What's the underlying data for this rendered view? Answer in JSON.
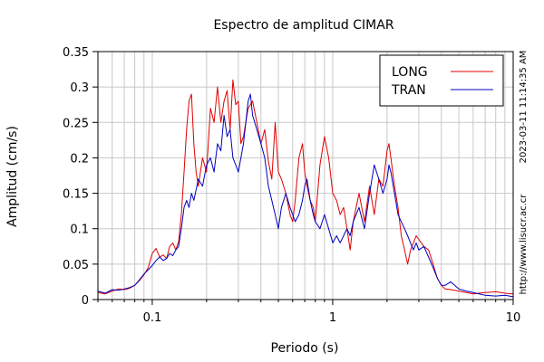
{
  "chart_data": {
    "type": "line",
    "title": "Espectro de amplitud CIMAR",
    "xlabel": "Periodo (s)",
    "ylabel": "Amplitud (cm/s)",
    "x_scale": "log",
    "xlim": [
      0.05,
      10
    ],
    "ylim": [
      0,
      0.35
    ],
    "x_ticks": [
      {
        "value": 0.1,
        "label": "0.1"
      },
      {
        "value": 1,
        "label": "1"
      },
      {
        "value": 10,
        "label": "10"
      }
    ],
    "y_ticks": [
      {
        "value": 0,
        "label": "0"
      },
      {
        "value": 0.05,
        "label": "0.05"
      },
      {
        "value": 0.1,
        "label": "0.1"
      },
      {
        "value": 0.15,
        "label": "0.15"
      },
      {
        "value": 0.2,
        "label": "0.2"
      },
      {
        "value": 0.25,
        "label": "0.25"
      },
      {
        "value": 0.3,
        "label": "0.3"
      },
      {
        "value": 0.35,
        "label": "0.35"
      }
    ],
    "grid": true,
    "legend_position": "top-right",
    "side_labels": {
      "timestamp": "2023-03-11 11:14:35 AM",
      "website": "http://www.lisucr.ac.cr"
    },
    "series": [
      {
        "name": "LONG",
        "color": "#e00000",
        "points": [
          [
            0.05,
            0.01
          ],
          [
            0.055,
            0.008
          ],
          [
            0.06,
            0.012
          ],
          [
            0.065,
            0.015
          ],
          [
            0.07,
            0.014
          ],
          [
            0.075,
            0.016
          ],
          [
            0.08,
            0.02
          ],
          [
            0.085,
            0.027
          ],
          [
            0.09,
            0.035
          ],
          [
            0.095,
            0.045
          ],
          [
            0.1,
            0.065
          ],
          [
            0.105,
            0.072
          ],
          [
            0.11,
            0.06
          ],
          [
            0.115,
            0.063
          ],
          [
            0.12,
            0.058
          ],
          [
            0.125,
            0.075
          ],
          [
            0.13,
            0.08
          ],
          [
            0.135,
            0.07
          ],
          [
            0.14,
            0.082
          ],
          [
            0.145,
            0.12
          ],
          [
            0.15,
            0.18
          ],
          [
            0.155,
            0.24
          ],
          [
            0.16,
            0.28
          ],
          [
            0.165,
            0.29
          ],
          [
            0.17,
            0.22
          ],
          [
            0.175,
            0.18
          ],
          [
            0.18,
            0.16
          ],
          [
            0.19,
            0.2
          ],
          [
            0.2,
            0.18
          ],
          [
            0.21,
            0.27
          ],
          [
            0.22,
            0.25
          ],
          [
            0.23,
            0.3
          ],
          [
            0.24,
            0.25
          ],
          [
            0.25,
            0.28
          ],
          [
            0.26,
            0.295
          ],
          [
            0.27,
            0.24
          ],
          [
            0.28,
            0.31
          ],
          [
            0.29,
            0.275
          ],
          [
            0.3,
            0.28
          ],
          [
            0.31,
            0.22
          ],
          [
            0.32,
            0.23
          ],
          [
            0.34,
            0.27
          ],
          [
            0.36,
            0.28
          ],
          [
            0.38,
            0.25
          ],
          [
            0.4,
            0.22
          ],
          [
            0.42,
            0.24
          ],
          [
            0.44,
            0.195
          ],
          [
            0.46,
            0.17
          ],
          [
            0.48,
            0.25
          ],
          [
            0.5,
            0.18
          ],
          [
            0.52,
            0.17
          ],
          [
            0.55,
            0.15
          ],
          [
            0.58,
            0.12
          ],
          [
            0.6,
            0.11
          ],
          [
            0.62,
            0.14
          ],
          [
            0.65,
            0.2
          ],
          [
            0.68,
            0.22
          ],
          [
            0.7,
            0.18
          ],
          [
            0.72,
            0.16
          ],
          [
            0.75,
            0.14
          ],
          [
            0.78,
            0.13
          ],
          [
            0.8,
            0.11
          ],
          [
            0.85,
            0.19
          ],
          [
            0.9,
            0.23
          ],
          [
            0.95,
            0.2
          ],
          [
            1.0,
            0.15
          ],
          [
            1.05,
            0.14
          ],
          [
            1.1,
            0.12
          ],
          [
            1.15,
            0.13
          ],
          [
            1.2,
            0.1
          ],
          [
            1.25,
            0.07
          ],
          [
            1.3,
            0.11
          ],
          [
            1.4,
            0.15
          ],
          [
            1.5,
            0.11
          ],
          [
            1.6,
            0.16
          ],
          [
            1.7,
            0.12
          ],
          [
            1.8,
            0.17
          ],
          [
            1.9,
            0.16
          ],
          [
            2.0,
            0.21
          ],
          [
            2.05,
            0.22
          ],
          [
            2.1,
            0.2
          ],
          [
            2.2,
            0.16
          ],
          [
            2.3,
            0.13
          ],
          [
            2.4,
            0.09
          ],
          [
            2.5,
            0.07
          ],
          [
            2.6,
            0.05
          ],
          [
            2.7,
            0.07
          ],
          [
            2.8,
            0.08
          ],
          [
            2.9,
            0.09
          ],
          [
            3.0,
            0.085
          ],
          [
            3.2,
            0.075
          ],
          [
            3.4,
            0.07
          ],
          [
            3.6,
            0.05
          ],
          [
            3.8,
            0.03
          ],
          [
            4.0,
            0.02
          ],
          [
            4.2,
            0.015
          ],
          [
            4.5,
            0.014
          ],
          [
            5.0,
            0.012
          ],
          [
            5.5,
            0.01
          ],
          [
            6.0,
            0.008
          ],
          [
            7.0,
            0.01
          ],
          [
            8.0,
            0.011
          ],
          [
            9.0,
            0.009
          ],
          [
            10.0,
            0.008
          ]
        ]
      },
      {
        "name": "TRAN",
        "color": "#0000c0",
        "points": [
          [
            0.05,
            0.012
          ],
          [
            0.055,
            0.009
          ],
          [
            0.06,
            0.014
          ],
          [
            0.065,
            0.013
          ],
          [
            0.07,
            0.015
          ],
          [
            0.075,
            0.017
          ],
          [
            0.08,
            0.02
          ],
          [
            0.085,
            0.028
          ],
          [
            0.09,
            0.036
          ],
          [
            0.095,
            0.042
          ],
          [
            0.1,
            0.048
          ],
          [
            0.105,
            0.055
          ],
          [
            0.11,
            0.06
          ],
          [
            0.115,
            0.055
          ],
          [
            0.12,
            0.058
          ],
          [
            0.125,
            0.065
          ],
          [
            0.13,
            0.062
          ],
          [
            0.135,
            0.07
          ],
          [
            0.14,
            0.075
          ],
          [
            0.145,
            0.1
          ],
          [
            0.15,
            0.13
          ],
          [
            0.155,
            0.14
          ],
          [
            0.16,
            0.13
          ],
          [
            0.165,
            0.15
          ],
          [
            0.17,
            0.14
          ],
          [
            0.175,
            0.155
          ],
          [
            0.18,
            0.17
          ],
          [
            0.19,
            0.16
          ],
          [
            0.2,
            0.19
          ],
          [
            0.21,
            0.2
          ],
          [
            0.22,
            0.18
          ],
          [
            0.23,
            0.22
          ],
          [
            0.24,
            0.21
          ],
          [
            0.25,
            0.26
          ],
          [
            0.26,
            0.23
          ],
          [
            0.27,
            0.24
          ],
          [
            0.28,
            0.2
          ],
          [
            0.29,
            0.19
          ],
          [
            0.3,
            0.18
          ],
          [
            0.31,
            0.2
          ],
          [
            0.32,
            0.22
          ],
          [
            0.33,
            0.25
          ],
          [
            0.34,
            0.28
          ],
          [
            0.35,
            0.29
          ],
          [
            0.36,
            0.26
          ],
          [
            0.38,
            0.24
          ],
          [
            0.4,
            0.22
          ],
          [
            0.42,
            0.2
          ],
          [
            0.44,
            0.16
          ],
          [
            0.46,
            0.14
          ],
          [
            0.48,
            0.12
          ],
          [
            0.5,
            0.1
          ],
          [
            0.52,
            0.13
          ],
          [
            0.55,
            0.15
          ],
          [
            0.58,
            0.13
          ],
          [
            0.6,
            0.12
          ],
          [
            0.62,
            0.11
          ],
          [
            0.65,
            0.12
          ],
          [
            0.68,
            0.14
          ],
          [
            0.7,
            0.16
          ],
          [
            0.72,
            0.17
          ],
          [
            0.75,
            0.14
          ],
          [
            0.78,
            0.12
          ],
          [
            0.8,
            0.11
          ],
          [
            0.85,
            0.1
          ],
          [
            0.9,
            0.12
          ],
          [
            0.95,
            0.1
          ],
          [
            1.0,
            0.08
          ],
          [
            1.05,
            0.09
          ],
          [
            1.1,
            0.08
          ],
          [
            1.15,
            0.09
          ],
          [
            1.2,
            0.1
          ],
          [
            1.25,
            0.09
          ],
          [
            1.3,
            0.11
          ],
          [
            1.4,
            0.13
          ],
          [
            1.5,
            0.1
          ],
          [
            1.6,
            0.15
          ],
          [
            1.7,
            0.19
          ],
          [
            1.8,
            0.17
          ],
          [
            1.9,
            0.15
          ],
          [
            2.0,
            0.17
          ],
          [
            2.05,
            0.19
          ],
          [
            2.1,
            0.18
          ],
          [
            2.2,
            0.15
          ],
          [
            2.3,
            0.12
          ],
          [
            2.4,
            0.11
          ],
          [
            2.5,
            0.1
          ],
          [
            2.6,
            0.09
          ],
          [
            2.7,
            0.08
          ],
          [
            2.8,
            0.07
          ],
          [
            2.9,
            0.08
          ],
          [
            3.0,
            0.07
          ],
          [
            3.2,
            0.075
          ],
          [
            3.4,
            0.06
          ],
          [
            3.6,
            0.045
          ],
          [
            3.8,
            0.03
          ],
          [
            4.0,
            0.02
          ],
          [
            4.2,
            0.02
          ],
          [
            4.5,
            0.025
          ],
          [
            5.0,
            0.015
          ],
          [
            5.5,
            0.012
          ],
          [
            6.0,
            0.01
          ],
          [
            7.0,
            0.006
          ],
          [
            8.0,
            0.005
          ],
          [
            9.0,
            0.006
          ],
          [
            10.0,
            0.004
          ]
        ]
      }
    ]
  }
}
